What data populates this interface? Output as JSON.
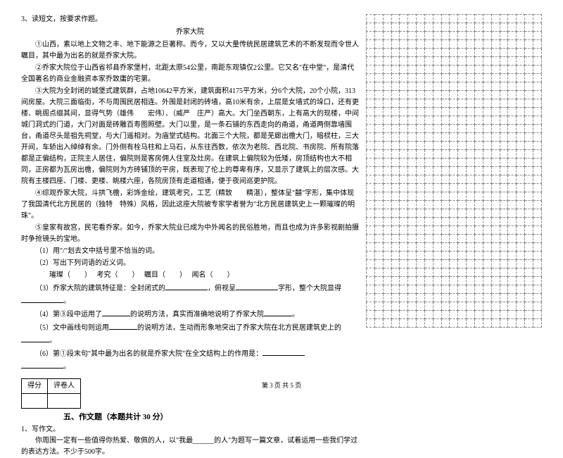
{
  "question_num": "3、读短文，按要求作题。",
  "article_title": "乔家大院",
  "paragraphs": {
    "p1": "①山西，素以地上文物之丰、地下能源之巨著称。而今，又以大量传统民居建筑艺术的不断发现而令世人瞩目，其中最为出名的就是乔家大院。",
    "p2": "②乔家大院位于山西省祁县乔家堡村，北距太原54公里，南距东观镇仅2公里。它又名\"在中堂\"，是清代全国著名的商业金融资本家乔致庸的宅第。",
    "p3": "③大院为全封闭的城堡式建筑群，占地10642平方米，建筑面积4175平方米，分6个大院，20个小院，313间房屋。大院三面临街，不与周围民居相连。外围是封闭的砖墙，高10米有余，上层是女墙式的垛口，还有更楼、眺阁点缀其间，显得气势（雄伟　　宏伟）、（威严　庄严）高大。大门坐西朝东，上有高大的现楼，中间城门洞式的门道，大门对面是砖雕百寿图照壁。大门以里，是一条石铺的东西走向的甬道，甬道两侧靠墙围台，甬道尽头是祖先祠堂，与大门遥相对。为庙堂式结构。北面三个大院，都是芜廊出檐大门，暗棂柱，三大开间，车轿出入绰绰有余。门外侧有栓马柱和上马石，从东往西数，依次为老院、西北院、书房院、所有院落都是正偏结构，正院主人居住，偏院则是客房佣人住室及灶房。在建筑上偏院较为低矮，房顶结构也大不相同，正房都为瓦房出檐，偏院则为方砖铺顶的平房，既表现了伦上的尊卑有序，又显示了建筑上的层次感。大院有主楼四座、门楼、更楼、眺楼六座，各院房顶有走道相通，便于夜间巡更护院。",
    "p4": "④综观乔家大院，斗拱飞檐，彩饰金绘，建筑考究，工艺（精致　　精湛），整体呈\"囍\"字形，集中体现了我国清代北方民居的（独特　特殊）风格，因此这座大院被专家学者誉为\"北方民居建筑史上一颗璀璨的明珠\"。",
    "p5": "⑤皇家有故宫，民宅看乔家。如今，乔家大院业已成为中外闻名的民俗胜地，而且也成为许多影视剧拍摄时争抢镜头的宝地。"
  },
  "sub_questions": {
    "q1": "（1）用\"/\"划去文中括号里不恰当的词。",
    "q2": "（2）写出下列词语的近义词。",
    "q2_words": {
      "w1": "璀璨（　　）",
      "w2": "考究（　　）",
      "w3": "瞩目（　　）",
      "w4": "闻名（　　）"
    },
    "q3_prefix": "（3）乔家大院的建筑特征是：全封闭式的",
    "q3_mid": "，俯视呈",
    "q3_suffix": "字形，整个大院显得",
    "q3_end": "。",
    "q4_prefix": "（4）第③段中运用了",
    "q4_suffix": "的说明方法，真实而准确地说明了乔家大院",
    "q4_end": "。",
    "q5_prefix": "（5）文中画线句则运用",
    "q5_suffix": "的说明方法，生动而形象地突出了乔家大院在北方民居建筑史上的",
    "q5_end": "。",
    "q6_prefix": "（6）第①段末句\"其中最为出名的就是乔家大院\"在全文结构上的作用是：",
    "q6_end": "。"
  },
  "score_table": {
    "col1": "得分",
    "col2": "评卷人"
  },
  "section_title": "五、作文题（本题共计 30 分）",
  "essay": {
    "num": "1、写作文。",
    "body": "你周围一定有一些值得你热爱、敬佩的人，以\"我最______的人\"为题写一篇文章，试着运用一些我们学过的表达方法。不少于500字。"
  },
  "footer": "第 3 页 共 5 页",
  "grid": {
    "rows": 37,
    "cols": 21
  }
}
